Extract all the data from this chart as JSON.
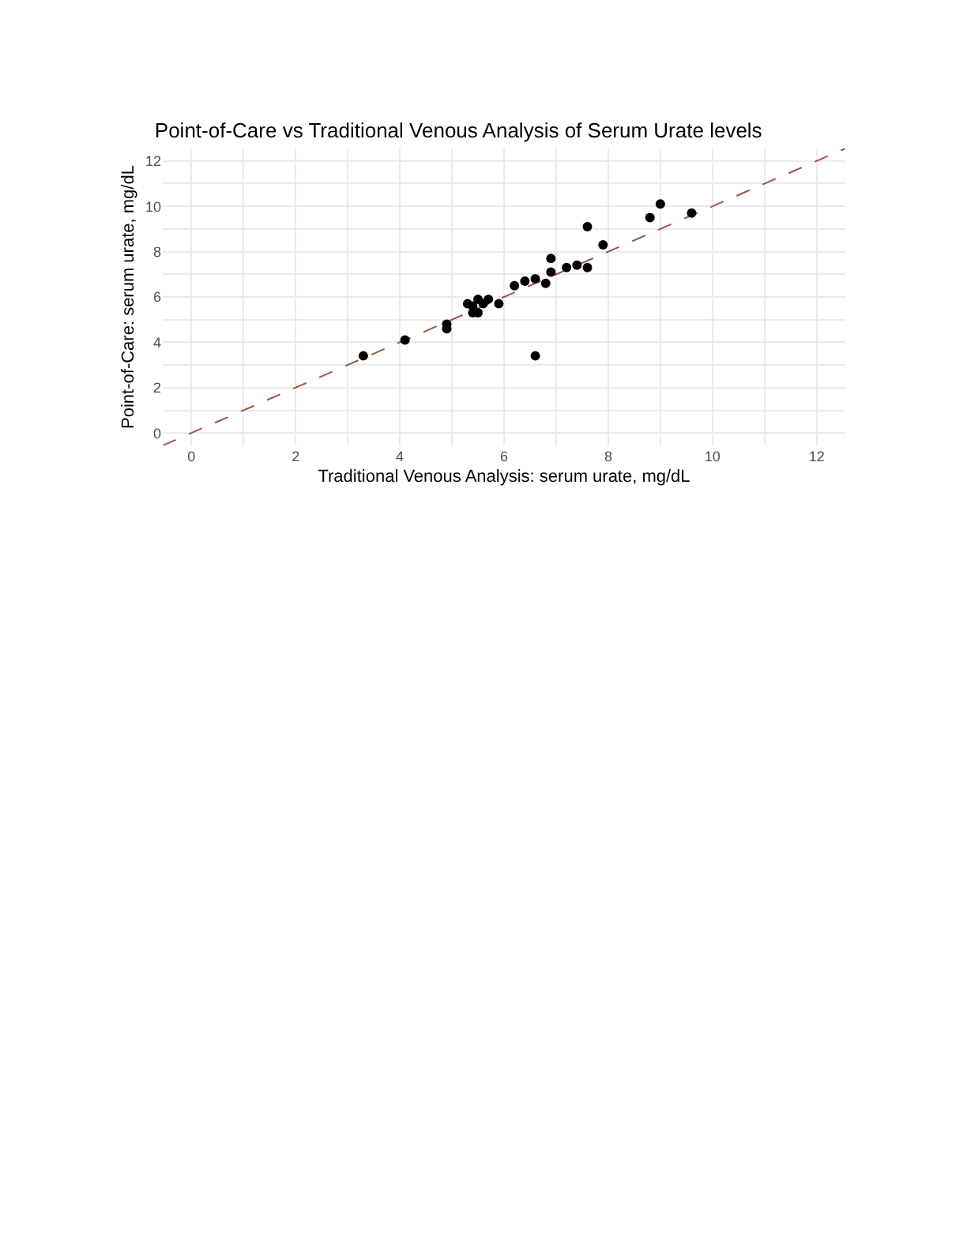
{
  "chart_data": {
    "type": "scatter",
    "title": "Point-of-Care vs Traditional Venous Analysis of Serum Urate levels",
    "xlabel": "Traditional Venous Analysis: serum urate, mg/dL",
    "ylabel": "Point-of-Care: serum urate, mg/dL",
    "series": [
      {
        "color": "#000000",
        "marker": "circle",
        "x": [
          3.3,
          4.1,
          4.9,
          4.9,
          5.3,
          5.4,
          5.4,
          5.5,
          5.5,
          5.6,
          5.7,
          5.9,
          6.2,
          6.4,
          6.6,
          6.6,
          6.8,
          6.9,
          6.9,
          7.2,
          7.4,
          7.6,
          7.6,
          7.9,
          8.8,
          9.0,
          9.6
        ],
        "values": [
          3.4,
          4.1,
          4.8,
          4.6,
          5.7,
          5.6,
          5.3,
          5.9,
          5.3,
          5.7,
          5.9,
          5.7,
          6.5,
          6.7,
          6.8,
          3.4,
          6.6,
          7.7,
          7.1,
          7.3,
          7.4,
          9.1,
          7.3,
          8.3,
          9.5,
          10.1,
          9.7
        ]
      },
      {
        "type": "line",
        "color": "#a0524d",
        "line_style": "dashed",
        "x": [
          -0.55,
          12.55
        ],
        "values": [
          -0.55,
          12.55
        ]
      }
    ],
    "xlim": [
      -0.55,
      12.55
    ],
    "ylim": [
      -0.55,
      12.55
    ],
    "xticks": [
      0,
      {
        "value": 1,
        "label": null
      },
      2,
      {
        "value": 3,
        "label": null
      },
      4,
      {
        "value": 5,
        "label": null
      },
      6,
      {
        "value": 7,
        "label": null
      },
      8,
      {
        "value": 9,
        "label": null
      },
      10,
      {
        "value": 11,
        "label": null
      },
      12
    ],
    "yticks": [
      0,
      {
        "value": 1,
        "label": null
      },
      2,
      {
        "value": 3,
        "label": null
      },
      4,
      {
        "value": 5,
        "label": null
      },
      6,
      {
        "value": 7,
        "label": null
      },
      8,
      {
        "value": 9,
        "label": null
      },
      10,
      {
        "value": 11,
        "label": null
      },
      12
    ],
    "grid": true
  }
}
